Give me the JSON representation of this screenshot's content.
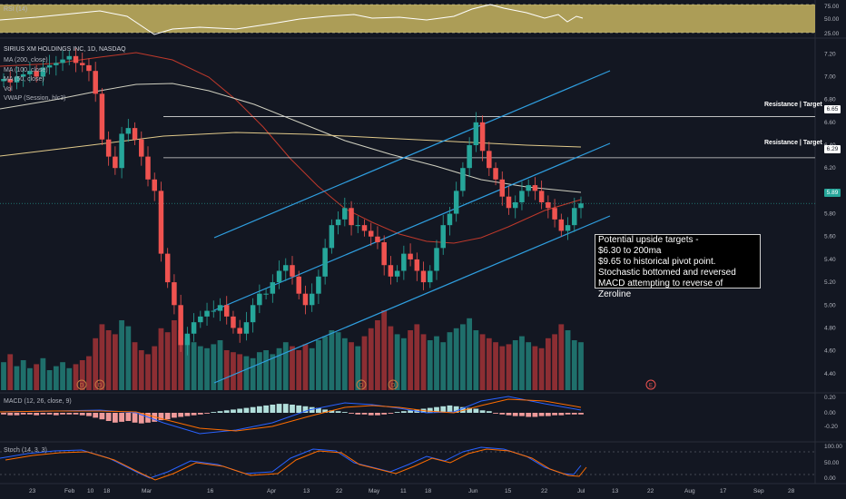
{
  "header": {
    "symbol_title": "SIRIUS XM HOLDINGS INC, 1D, NASDAQ",
    "indicators": [
      "MA (200, close)",
      "MA (100, close)",
      "MA (50, close)",
      "Vol",
      "VWAP (Session, hlc3)"
    ]
  },
  "rsi_panel": {
    "title": "RSI (14)",
    "ticks": [
      "75.00",
      "50.00",
      "25.00"
    ]
  },
  "macd_panel": {
    "title": "MACD (12, 26, close, 9)",
    "ticks": [
      "0.20",
      "0.00",
      "-0.20"
    ]
  },
  "stoch_panel": {
    "title": "Stoch (14, 3, 3)",
    "ticks": [
      "100.00",
      "50.00",
      "0.00"
    ]
  },
  "price_axis": {
    "ticks": [
      "7.20",
      "7.00",
      "6.80",
      "6.60",
      "6.40",
      "6.20",
      "6.00",
      "5.80",
      "5.60",
      "5.40",
      "5.20",
      "5.00",
      "4.80",
      "4.60",
      "4.40"
    ]
  },
  "time_axis": {
    "ticks": [
      "23",
      "Feb",
      "10",
      "18",
      "Mar",
      "16",
      "Apr",
      "13",
      "22",
      "May",
      "11",
      "18",
      "Jun",
      "15",
      "22",
      "Jul",
      "13",
      "22",
      "Aug",
      "17",
      "Sep",
      "28"
    ]
  },
  "price_badges": {
    "resistance1": {
      "label": "Resistance | Target",
      "price": "6.65"
    },
    "resistance2": {
      "label": "Resistance | Target",
      "price": "6.29"
    },
    "current": {
      "price": "5.89"
    }
  },
  "event_markers": [
    "D",
    "D",
    "D",
    "D",
    "E"
  ],
  "annotation": {
    "lines": [
      "Potential upside targets -",
      "$6.30 to 200ma",
      "$9.65 to historical pivot point.",
      "Stochastic bottomed and reversed",
      "MACD attempting to reverse of Zeroline"
    ]
  },
  "colors": {
    "background": "#131722",
    "up": "#26a69a",
    "down": "#ef5350",
    "vol_up": "#1f6f6b",
    "vol_down": "#8c2e33",
    "channel": "#2f9fe0",
    "rsi_band": "#c8b560",
    "ma_red": "#c0392b",
    "ma_tan": "#e0c98a",
    "ma_white": "#d0d0c0",
    "badge": "#ffffff"
  },
  "chart_data": {
    "type": "candlestick",
    "title": "SIRIUS XM HOLDINGS INC, 1D, NASDAQ",
    "ylim": [
      4.2,
      7.25
    ],
    "series": [
      {
        "name": "price",
        "close": [
          6.98,
          6.95,
          7.0,
          7.02,
          7.05,
          7.0,
          7.08,
          7.1,
          7.12,
          7.15,
          7.18,
          7.12,
          7.1,
          7.05,
          6.85,
          6.45,
          6.3,
          6.2,
          6.5,
          6.55,
          6.45,
          6.3,
          6.1,
          6.0,
          5.45,
          5.2,
          5.0,
          4.65,
          4.75,
          4.85,
          4.9,
          4.95,
          4.95,
          5.0,
          4.9,
          4.8,
          4.75,
          4.85,
          5.0,
          5.1,
          5.1,
          5.2,
          5.3,
          5.35,
          5.25,
          5.1,
          5.0,
          5.1,
          5.25,
          5.5,
          5.7,
          5.75,
          5.85,
          5.7,
          5.7,
          5.65,
          5.6,
          5.55,
          5.35,
          5.25,
          5.3,
          5.45,
          5.4,
          5.3,
          5.2,
          5.3,
          5.5,
          5.7,
          5.8,
          6.0,
          6.2,
          6.4,
          6.6,
          6.35,
          6.2,
          6.1,
          5.95,
          5.85,
          5.9,
          6.0,
          6.05,
          6.0,
          5.9,
          5.85,
          5.75,
          5.65,
          5.7,
          5.85,
          5.89
        ]
      },
      {
        "name": "volume",
        "values": [
          14,
          18,
          12,
          15,
          11,
          13,
          16,
          10,
          12,
          14,
          11,
          13,
          15,
          17,
          26,
          33,
          30,
          28,
          35,
          32,
          24,
          20,
          18,
          22,
          31,
          29,
          35,
          30,
          26,
          24,
          22,
          21,
          23,
          25,
          20,
          19,
          18,
          17,
          16,
          19,
          20,
          18,
          21,
          24,
          22,
          20,
          23,
          21,
          25,
          27,
          30,
          29,
          26,
          24,
          22,
          27,
          31,
          35,
          40,
          32,
          28,
          26,
          30,
          33,
          28,
          25,
          27,
          24,
          29,
          31,
          33,
          36,
          30,
          28,
          26,
          24,
          22,
          23,
          25,
          27,
          24,
          22,
          21,
          26,
          28,
          33,
          30,
          25,
          24
        ]
      }
    ],
    "annotations": [
      {
        "text": "Resistance | Target",
        "y": 6.65
      },
      {
        "text": "Resistance | Target",
        "y": 6.29
      }
    ]
  }
}
